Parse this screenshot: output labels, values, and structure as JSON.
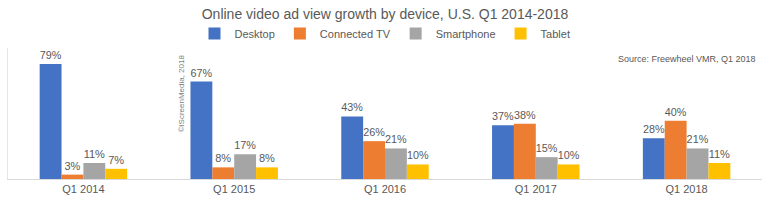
{
  "chart_data": {
    "type": "bar",
    "title": "Online video ad view growth by device, U.S. Q1 2014-2018",
    "categories": [
      "Q1 2014",
      "Q1 2015",
      "Q1 2016",
      "Q1 2017",
      "Q1 2018"
    ],
    "series": [
      {
        "name": "Desktop",
        "color": "#4472c4",
        "values": [
          79,
          67,
          43,
          37,
          28
        ],
        "value_labels": [
          "79%",
          "67%",
          "43%",
          "37%",
          "28%"
        ]
      },
      {
        "name": "Connected TV",
        "color": "#ed7d31",
        "values": [
          3,
          8,
          26,
          38,
          40
        ],
        "value_labels": [
          "3%",
          "8%",
          "26%",
          "38%",
          "40%"
        ]
      },
      {
        "name": "Smartphone",
        "color": "#a5a5a5",
        "values": [
          11,
          17,
          21,
          15,
          21
        ],
        "value_labels": [
          "11%",
          "17%",
          "21%",
          "15%",
          "21%"
        ]
      },
      {
        "name": "Tablet",
        "color": "#ffc000",
        "values": [
          7,
          8,
          10,
          10,
          11
        ],
        "value_labels": [
          "7%",
          "8%",
          "10%",
          "10%",
          "11%"
        ]
      }
    ],
    "annotations": [
      "Source: Freewheel VMR, Q1 2018",
      "©iScreenMedia, 2018"
    ],
    "ylim": [
      0,
      90
    ],
    "grid": false,
    "legend": "top",
    "data_labels": true,
    "tick_labels": "x"
  }
}
